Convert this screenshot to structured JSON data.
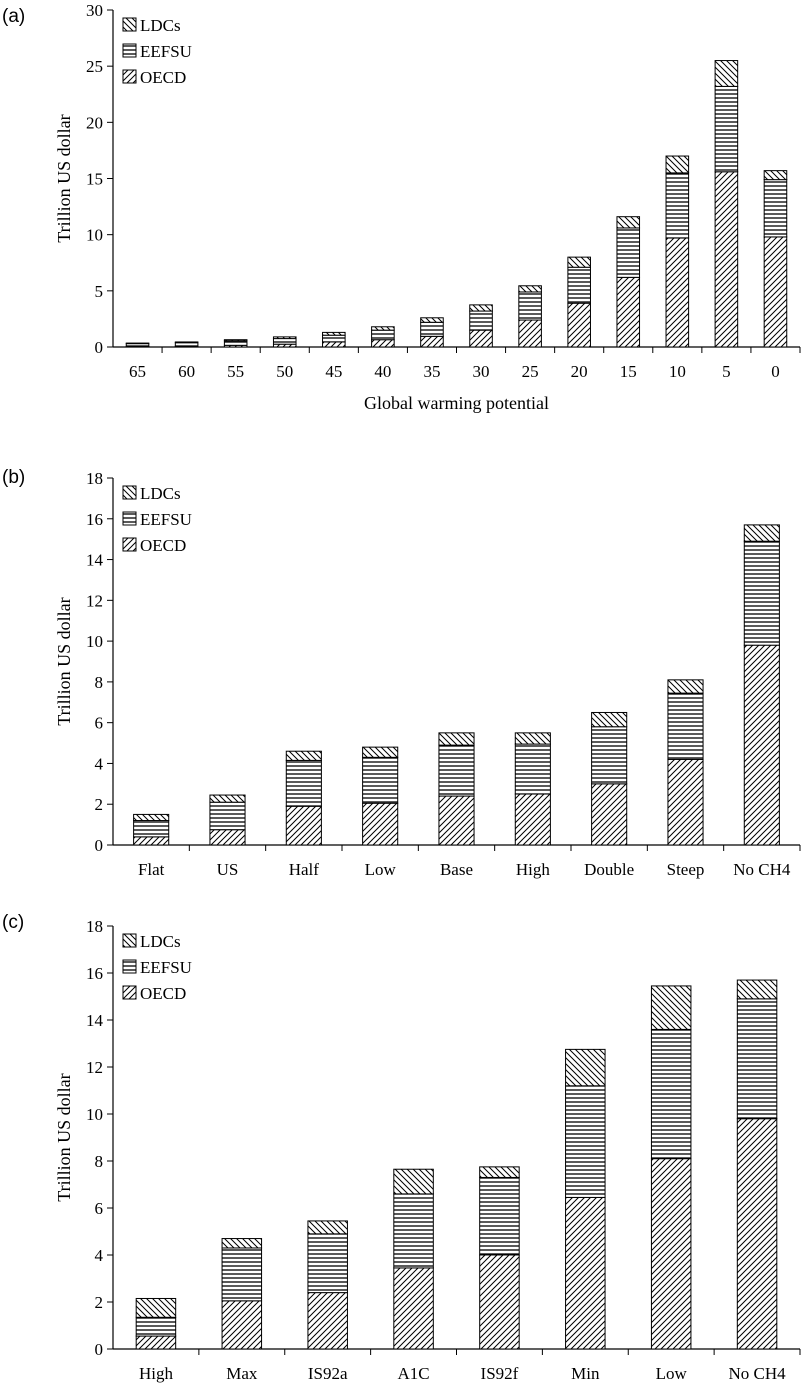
{
  "chart_data": [
    {
      "type": "bar",
      "stacked": true,
      "panel_label": "(a)",
      "title": "",
      "xlabel": "Global warming potential",
      "ylabel": "Trillion US dollar",
      "ylim": [
        0,
        30
      ],
      "yticks": [
        "0",
        "5",
        "10",
        "15",
        "20",
        "25",
        "30"
      ],
      "grid": false,
      "legend_position": "top-left",
      "categories": [
        "65",
        "60",
        "55",
        "50",
        "45",
        "40",
        "35",
        "30",
        "25",
        "20",
        "15",
        "10",
        "5",
        "0"
      ],
      "series": [
        {
          "name": "OECD",
          "pattern": "diagonal-hatch",
          "values": [
            0.05,
            0.08,
            0.15,
            0.25,
            0.45,
            0.65,
            0.95,
            1.5,
            2.4,
            3.9,
            6.2,
            9.7,
            15.6,
            9.8
          ]
        },
        {
          "name": "EEFSU",
          "pattern": "horizontal-lines",
          "values": [
            0.25,
            0.3,
            0.4,
            0.5,
            0.6,
            0.85,
            1.25,
            1.7,
            2.5,
            3.2,
            4.4,
            5.8,
            7.6,
            5.1
          ]
        },
        {
          "name": "LDCs",
          "pattern": "reverse-diagonal-hatch",
          "values": [
            0.05,
            0.07,
            0.1,
            0.15,
            0.25,
            0.3,
            0.4,
            0.55,
            0.55,
            0.9,
            1.0,
            1.5,
            2.3,
            0.8
          ]
        }
      ]
    },
    {
      "type": "bar",
      "stacked": true,
      "panel_label": "(b)",
      "title": "",
      "xlabel": "",
      "ylabel": "Trillion US dollar",
      "ylim": [
        0,
        18
      ],
      "yticks": [
        "0",
        "2",
        "4",
        "6",
        "8",
        "10",
        "12",
        "14",
        "16",
        "18"
      ],
      "grid": false,
      "legend_position": "top-left",
      "categories": [
        "Flat",
        "US",
        "Half",
        "Low",
        "Base",
        "High",
        "Double",
        "Steep",
        "No CH4"
      ],
      "series": [
        {
          "name": "OECD",
          "pattern": "diagonal-hatch",
          "values": [
            0.4,
            0.75,
            1.9,
            2.05,
            2.4,
            2.5,
            3.0,
            4.2,
            9.8
          ]
        },
        {
          "name": "EEFSU",
          "pattern": "horizontal-lines",
          "values": [
            0.8,
            1.35,
            2.25,
            2.25,
            2.5,
            2.45,
            2.8,
            3.25,
            5.1
          ]
        },
        {
          "name": "LDCs",
          "pattern": "reverse-diagonal-hatch",
          "values": [
            0.3,
            0.35,
            0.45,
            0.5,
            0.6,
            0.55,
            0.7,
            0.65,
            0.8
          ]
        }
      ]
    },
    {
      "type": "bar",
      "stacked": true,
      "panel_label": "(c)",
      "title": "",
      "xlabel": "",
      "ylabel": "Trillion US dollar",
      "ylim": [
        0,
        18
      ],
      "yticks": [
        "0",
        "2",
        "4",
        "6",
        "8",
        "10",
        "12",
        "14",
        "16",
        "18"
      ],
      "grid": false,
      "legend_position": "top-left",
      "categories": [
        "High",
        "Max",
        "IS92a",
        "A1C",
        "IS92f",
        "Min",
        "Low",
        "No CH4"
      ],
      "series": [
        {
          "name": "OECD",
          "pattern": "diagonal-hatch",
          "values": [
            0.55,
            2.05,
            2.4,
            3.45,
            4.0,
            6.45,
            8.1,
            9.8
          ]
        },
        {
          "name": "EEFSU",
          "pattern": "horizontal-lines",
          "values": [
            0.8,
            2.25,
            2.5,
            3.15,
            3.3,
            4.75,
            5.5,
            5.1
          ]
        },
        {
          "name": "LDCs",
          "pattern": "reverse-diagonal-hatch",
          "values": [
            0.8,
            0.4,
            0.55,
            1.05,
            0.45,
            1.55,
            1.85,
            0.8
          ]
        }
      ]
    }
  ]
}
